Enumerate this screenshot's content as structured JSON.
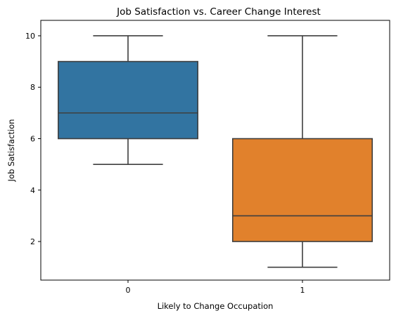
{
  "chart_data": {
    "type": "box",
    "title": "Job Satisfaction vs. Career Change Interest",
    "xlabel": "Likely to Change Occupation",
    "ylabel": "Job Satisfaction",
    "categories": [
      "0",
      "1"
    ],
    "ylim": [
      0.5,
      10.6
    ],
    "yticks": [
      2,
      4,
      6,
      8,
      10
    ],
    "grid": false,
    "legend": "none",
    "boxes": [
      {
        "category": "0",
        "whisker_low": 5,
        "q1": 6,
        "median": 7,
        "q3": 9,
        "whisker_high": 10,
        "color": "#3274a1"
      },
      {
        "category": "1",
        "whisker_low": 1,
        "q1": 2,
        "median": 3,
        "q3": 6,
        "whisker_high": 10,
        "color": "#e1812c"
      }
    ],
    "line_color": "#3f3f3f"
  }
}
